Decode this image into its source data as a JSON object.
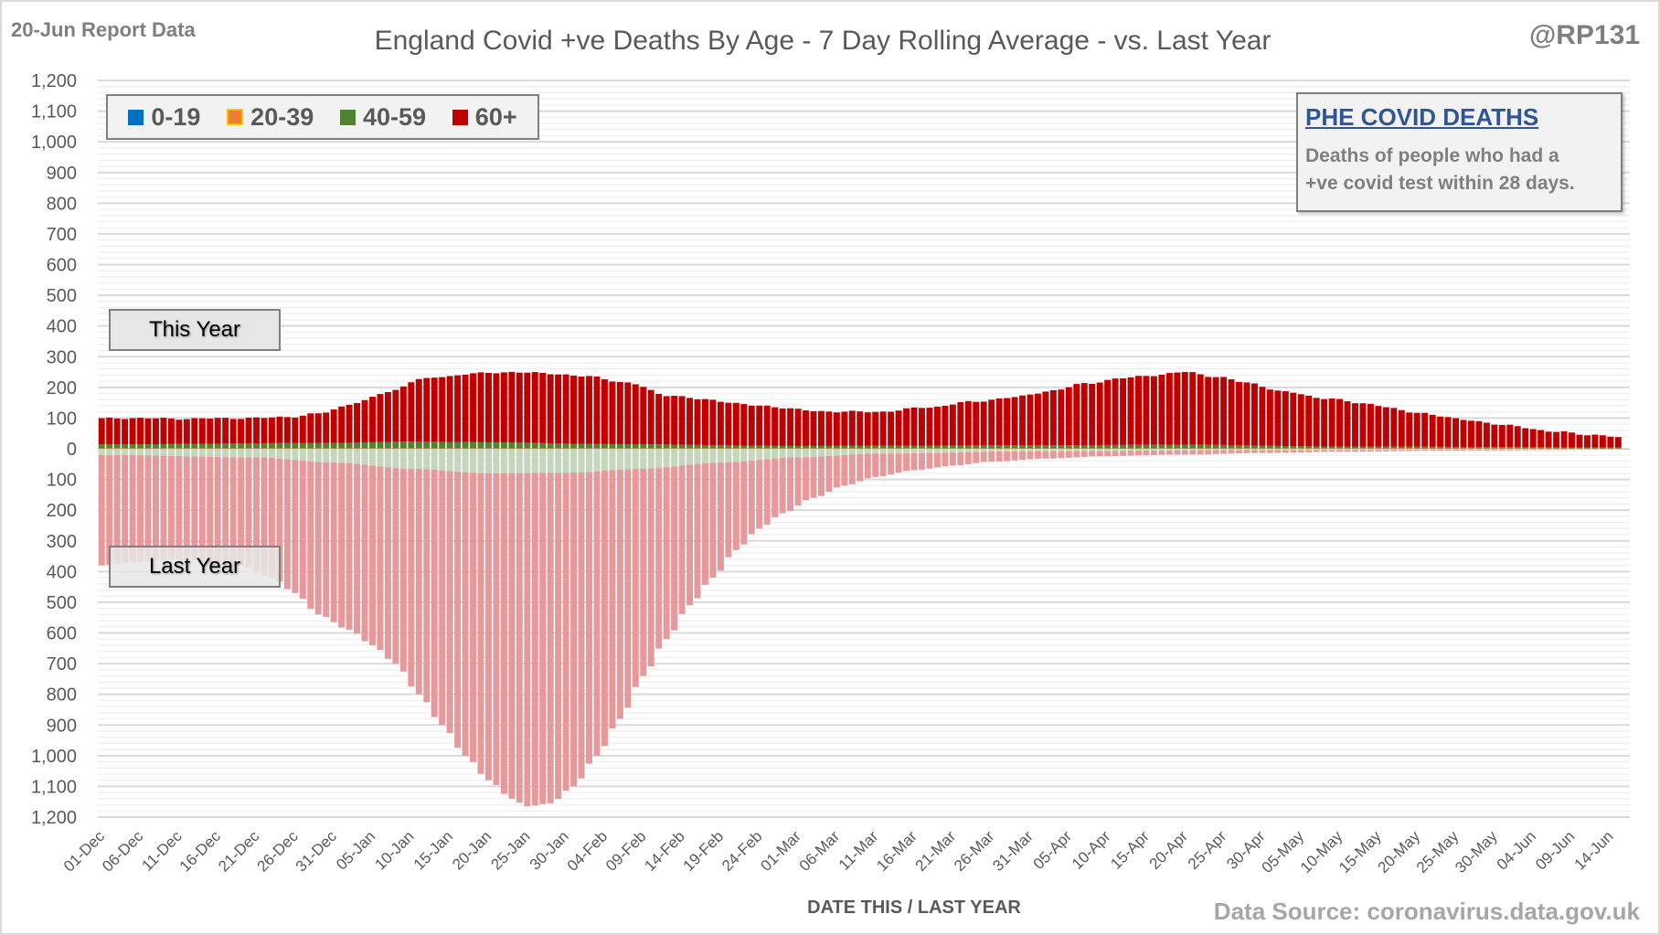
{
  "header": {
    "report_date": "20-Jun Report Data",
    "title": "England Covid +ve Deaths By Age - 7 Day Rolling Average - vs. Last Year",
    "handle": "@RP131"
  },
  "infobox": {
    "title": "PHE COVID DEATHS",
    "line1": "Deaths of people who had a",
    "line2": "+ve covid test within 28 days."
  },
  "tags": {
    "this_year": "This Year",
    "last_year": "Last Year"
  },
  "footer": {
    "source": "Data Source: coronavirus.data.gov.uk"
  },
  "colors": {
    "age_0_19": "#0070c0",
    "age_20_39": "#ed7d31",
    "age_40_59": "#548235",
    "age_60_plus": "#c00000",
    "last_year_60_plus": "#e6999a",
    "last_year_40_59": "#c5d6bc",
    "legend_20_39_border": "#ffc000"
  },
  "chart_data": {
    "type": "bar",
    "stacked": true,
    "title": "England Covid +ve Deaths By Age - 7 Day Rolling Average - vs. Last Year",
    "xlabel": "DATE THIS / LAST YEAR",
    "ylabel": "",
    "ylim": [
      -1200,
      1200
    ],
    "y_ticks": [
      1200,
      1100,
      1000,
      900,
      800,
      700,
      600,
      500,
      400,
      300,
      200,
      100,
      0,
      100,
      200,
      300,
      400,
      500,
      600,
      700,
      800,
      900,
      1000,
      1100,
      1200
    ],
    "y_tick_labels": [
      "1,200",
      "1,100",
      "1,000",
      "900",
      "800",
      "700",
      "600",
      "500",
      "400",
      "300",
      "200",
      "100",
      "0",
      "100",
      "200",
      "300",
      "400",
      "500",
      "600",
      "700",
      "800",
      "900",
      "1,000",
      "1,100",
      "1,200"
    ],
    "grid": true,
    "legend": {
      "placement": "top-left",
      "entries": [
        "0-19",
        "20-39",
        "40-59",
        "60+"
      ]
    },
    "x_start": "01-Dec",
    "x_tick_labels": [
      "01-Dec",
      "06-Dec",
      "11-Dec",
      "16-Dec",
      "21-Dec",
      "26-Dec",
      "31-Dec",
      "05-Jan",
      "10-Jan",
      "15-Jan",
      "20-Jan",
      "25-Jan",
      "30-Jan",
      "04-Feb",
      "09-Feb",
      "14-Feb",
      "19-Feb",
      "24-Feb",
      "01-Mar",
      "06-Mar",
      "11-Mar",
      "16-Mar",
      "21-Mar",
      "26-Mar",
      "31-Mar",
      "05-Apr",
      "10-Apr",
      "15-Apr",
      "20-Apr",
      "25-Apr",
      "30-Apr",
      "05-May",
      "10-May",
      "15-May",
      "20-May",
      "25-May",
      "30-May",
      "04-Jun",
      "09-Jun",
      "14-Jun"
    ],
    "this_year_total_keypoints": [
      [
        0,
        98
      ],
      [
        3,
        100
      ],
      [
        10,
        98
      ],
      [
        20,
        100
      ],
      [
        25,
        105
      ],
      [
        28,
        115
      ],
      [
        33,
        150
      ],
      [
        37,
        185
      ],
      [
        41,
        225
      ],
      [
        44,
        235
      ],
      [
        48,
        245
      ],
      [
        53,
        250
      ],
      [
        58,
        245
      ],
      [
        63,
        235
      ],
      [
        68,
        215
      ],
      [
        73,
        175
      ],
      [
        78,
        160
      ],
      [
        85,
        140
      ],
      [
        93,
        122
      ],
      [
        100,
        120
      ],
      [
        107,
        135
      ],
      [
        112,
        152
      ],
      [
        118,
        168
      ],
      [
        123,
        190
      ],
      [
        127,
        212
      ],
      [
        132,
        230
      ],
      [
        136,
        240
      ],
      [
        140,
        250
      ],
      [
        144,
        235
      ],
      [
        148,
        215
      ],
      [
        153,
        185
      ],
      [
        158,
        165
      ],
      [
        163,
        148
      ],
      [
        170,
        118
      ],
      [
        176,
        95
      ],
      [
        182,
        75
      ],
      [
        188,
        55
      ],
      [
        193,
        45
      ],
      [
        197,
        35
      ]
    ],
    "this_year_40_59_keypoints": [
      [
        0,
        13
      ],
      [
        30,
        18
      ],
      [
        40,
        22
      ],
      [
        50,
        20
      ],
      [
        65,
        14
      ],
      [
        90,
        8
      ],
      [
        120,
        10
      ],
      [
        140,
        12
      ],
      [
        160,
        6
      ],
      [
        197,
        3
      ]
    ],
    "last_year_total_keypoints": [
      [
        0,
        380
      ],
      [
        4,
        370
      ],
      [
        10,
        360
      ],
      [
        18,
        380
      ],
      [
        22,
        420
      ],
      [
        25,
        470
      ],
      [
        28,
        540
      ],
      [
        32,
        590
      ],
      [
        35,
        640
      ],
      [
        38,
        700
      ],
      [
        41,
        800
      ],
      [
        44,
        900
      ],
      [
        47,
        1000
      ],
      [
        50,
        1080
      ],
      [
        53,
        1140
      ],
      [
        55,
        1165
      ],
      [
        58,
        1155
      ],
      [
        61,
        1100
      ],
      [
        64,
        1000
      ],
      [
        67,
        880
      ],
      [
        70,
        740
      ],
      [
        73,
        620
      ],
      [
        76,
        510
      ],
      [
        79,
        420
      ],
      [
        82,
        330
      ],
      [
        85,
        260
      ],
      [
        88,
        210
      ],
      [
        92,
        160
      ],
      [
        96,
        120
      ],
      [
        100,
        92
      ],
      [
        105,
        70
      ],
      [
        110,
        55
      ],
      [
        115,
        42
      ],
      [
        122,
        32
      ],
      [
        130,
        24
      ],
      [
        140,
        19
      ],
      [
        150,
        14
      ],
      [
        160,
        10
      ],
      [
        175,
        6
      ],
      [
        197,
        3
      ]
    ],
    "last_year_40_59_keypoints": [
      [
        0,
        20
      ],
      [
        20,
        28
      ],
      [
        30,
        45
      ],
      [
        40,
        65
      ],
      [
        50,
        80
      ],
      [
        60,
        78
      ],
      [
        70,
        65
      ],
      [
        80,
        45
      ],
      [
        90,
        28
      ],
      [
        100,
        16
      ],
      [
        120,
        8
      ],
      [
        150,
        4
      ],
      [
        197,
        2
      ]
    ],
    "n_days": 198
  }
}
